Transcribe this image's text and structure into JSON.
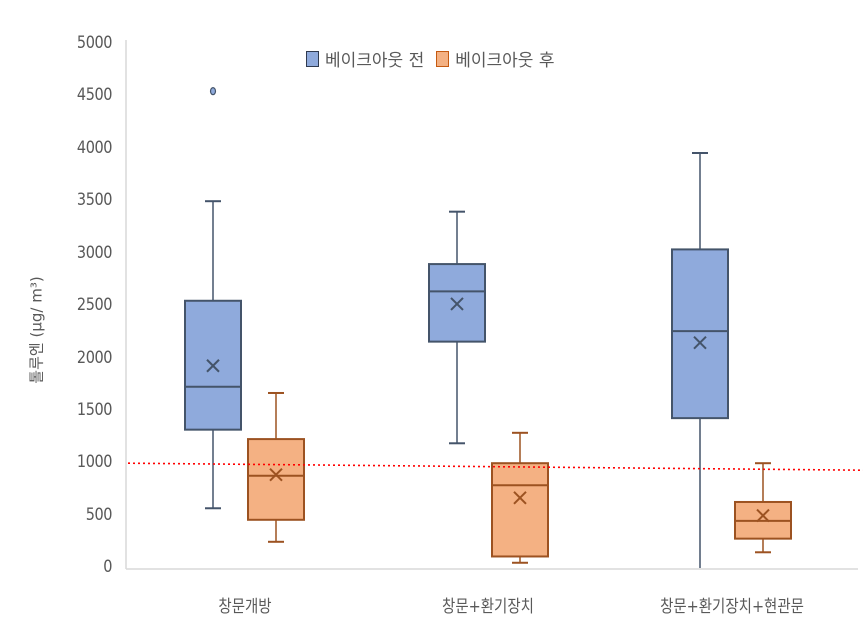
{
  "chart_data": {
    "type": "boxplot",
    "title": "",
    "xlabel": "",
    "ylabel": "톨루엔 (μg/ m³)",
    "ylim": [
      0,
      5000
    ],
    "yticks": [
      0,
      500,
      1000,
      1500,
      2000,
      2500,
      3000,
      3500,
      4000,
      4500,
      5000
    ],
    "grid": false,
    "legend_position": "top",
    "categories": [
      "창문개방",
      "창문+환기장치",
      "창문+환기장치+현관문"
    ],
    "series": [
      {
        "name": "베이크아웃 전",
        "color": "#8FAADC",
        "edge_color": "#44546A",
        "boxes": [
          {
            "whisker_low": 570,
            "q1": 1320,
            "median": 1730,
            "q3": 2550,
            "whisker_high": 3500,
            "mean": 1930,
            "outliers": [
              4550
            ]
          },
          {
            "whisker_low": 1190,
            "q1": 2160,
            "median": 2640,
            "q3": 2900,
            "whisker_high": 3400,
            "mean": 2520,
            "outliers": []
          },
          {
            "whisker_low": 0,
            "q1": 1430,
            "median": 2260,
            "q3": 3040,
            "whisker_high": 3960,
            "mean": 2150,
            "outliers": []
          }
        ]
      },
      {
        "name": "베이크아웃 후",
        "color": "#F4B183",
        "edge_color": "#9C5221",
        "boxes": [
          {
            "whisker_low": 250,
            "q1": 460,
            "median": 880,
            "q3": 1230,
            "whisker_high": 1670,
            "mean": 890,
            "outliers": []
          },
          {
            "whisker_low": 50,
            "q1": 110,
            "median": 790,
            "q3": 1000,
            "whisker_high": 1290,
            "mean": 670,
            "outliers": []
          },
          {
            "whisker_low": 150,
            "q1": 280,
            "median": 450,
            "q3": 630,
            "whisker_high": 1000,
            "mean": 500,
            "outliers": []
          }
        ]
      }
    ],
    "annotations": [
      {
        "type": "reference_line",
        "value": 1000,
        "style": "dotted",
        "color": "#FF0000"
      }
    ]
  },
  "legend": {
    "before_label": "베이크아웃 전",
    "after_label": "베이크아웃 후"
  },
  "axis": {
    "y_title": "톨루엔 (μg/ m³)",
    "y_ticks": [
      "5000",
      "4500",
      "4000",
      "3500",
      "3000",
      "2500",
      "2000",
      "1500",
      "1000",
      "500",
      "0"
    ],
    "categories": [
      "창문개방",
      "창문+환기장치",
      "창문+환기장치+현관문"
    ]
  }
}
